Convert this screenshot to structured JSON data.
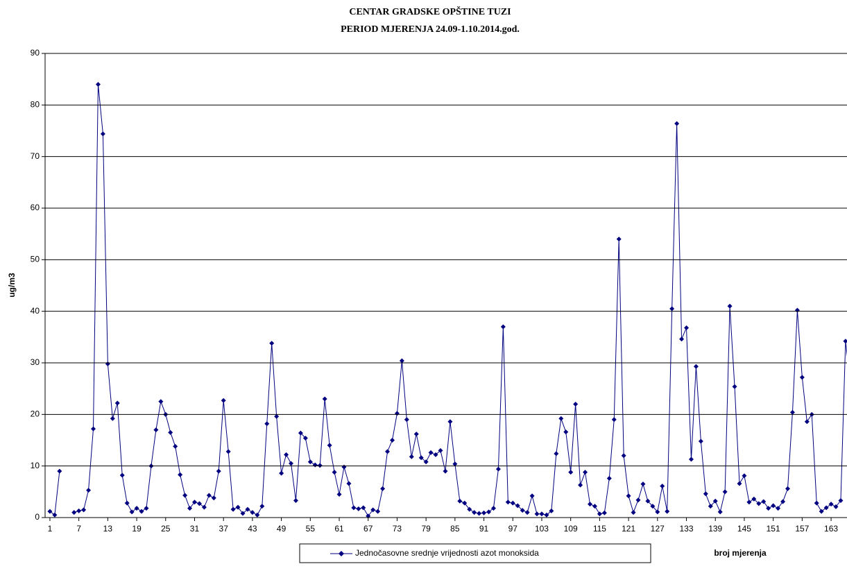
{
  "chart_data": {
    "type": "line",
    "title": "CENTAR GRADSKE OPŠTINE TUZI",
    "subtitle": "PERIOD MJERENJA 24.09-1.10.2014.god.",
    "x_label": "broj mjerenja",
    "y_label": "ug/m3",
    "x": [
      1,
      2,
      3,
      4,
      5,
      6,
      7,
      8,
      9,
      10,
      11,
      12,
      13,
      14,
      15,
      16,
      17,
      18,
      19,
      20,
      21,
      22,
      23,
      24,
      25,
      26,
      27,
      28,
      29,
      30,
      31,
      32,
      33,
      34,
      35,
      36,
      37,
      38,
      39,
      40,
      41,
      42,
      43,
      44,
      45,
      46,
      47,
      48,
      49,
      50,
      51,
      52,
      53,
      54,
      55,
      56,
      57,
      58,
      59,
      60,
      61,
      62,
      63,
      64,
      65,
      66,
      67,
      68,
      69,
      70,
      71,
      72,
      73,
      74,
      75,
      76,
      77,
      78,
      79,
      80,
      81,
      82,
      83,
      84,
      85,
      86,
      87,
      88,
      89,
      90,
      91,
      92,
      93,
      94,
      95,
      96,
      97,
      98,
      99,
      100,
      101,
      102,
      103,
      104,
      105,
      106,
      107,
      108,
      109,
      110,
      111,
      112,
      113,
      114,
      115,
      116,
      117,
      118,
      119,
      120,
      121,
      122,
      123,
      124,
      125,
      126,
      127,
      128,
      129,
      130,
      131,
      132,
      133,
      134,
      135,
      136,
      137,
      138,
      139,
      140,
      141,
      142,
      143,
      144,
      145,
      146,
      147,
      148,
      149,
      150,
      151,
      152,
      153,
      154,
      155,
      156,
      157,
      158,
      159,
      160,
      161,
      162,
      163,
      164,
      165,
      166,
      167
    ],
    "series": [
      {
        "name": "Jednočasovne srednje vrijednosti azot monoksida",
        "color": "#000080",
        "values": [
          1.2,
          0.5,
          9,
          null,
          null,
          1,
          1.3,
          1.5,
          5.3,
          17.2,
          84,
          74.4,
          29.8,
          19.2,
          22.2,
          8.2,
          2.8,
          1.1,
          1.8,
          1.2,
          1.8,
          10,
          17,
          22.5,
          20,
          16.5,
          13.8,
          8.3,
          4.3,
          1.8,
          3,
          2.7,
          2,
          4.3,
          3.8,
          9,
          22.7,
          12.8,
          1.6,
          2,
          0.8,
          1.6,
          1,
          0.5,
          2.2,
          18.2,
          33.8,
          19.6,
          8.6,
          12.2,
          10.5,
          3.3,
          16.4,
          15.4,
          10.8,
          10.2,
          10.1,
          23,
          14,
          8.8,
          4.5,
          9.8,
          6.6,
          1.9,
          1.7,
          1.9,
          0.3,
          1.5,
          1.2,
          5.6,
          12.8,
          15,
          20.2,
          30.4,
          19,
          11.8,
          16.2,
          11.6,
          10.8,
          12.6,
          12.2,
          13,
          9,
          18.6,
          10.4,
          3.2,
          2.8,
          1.6,
          1,
          0.8,
          0.9,
          1.1,
          1.8,
          9.4,
          37,
          3,
          2.8,
          2.3,
          1.4,
          1,
          4.2,
          0.7,
          0.7,
          0.5,
          1.3,
          12.4,
          19.2,
          16.6,
          8.8,
          22,
          6.3,
          8.8,
          2.6,
          2.2,
          0.7,
          0.9,
          7.6,
          19,
          54,
          12,
          4.2,
          1,
          3.4,
          6.5,
          3.2,
          2.2,
          1.1,
          6.1,
          1.2,
          40.5,
          76.4,
          34.6,
          36.8,
          11.3,
          29.3,
          14.8,
          4.6,
          2.2,
          3.2,
          1.1,
          5,
          41,
          25.4,
          6.6,
          8.1,
          3,
          3.6,
          2.7,
          3.1,
          1.8,
          2.3,
          1.8,
          3.1,
          5.6,
          20.4,
          40.2,
          27.2,
          18.6,
          20,
          2.8,
          1.2,
          1.9,
          2.6,
          2.1,
          3.3,
          34.2,
          26
        ]
      }
    ],
    "xlim": [
      0,
      166.3
    ],
    "xticks": [
      1,
      7,
      13,
      19,
      25,
      31,
      37,
      43,
      49,
      55,
      61,
      67,
      73,
      79,
      85,
      91,
      97,
      103,
      109,
      115,
      121,
      127,
      133,
      139,
      145,
      151,
      157,
      163
    ],
    "ylim": [
      0,
      90
    ],
    "yticks": [
      0,
      10,
      20,
      30,
      40,
      50,
      60,
      70,
      80,
      90
    ],
    "grid": true,
    "legend": "bottom"
  }
}
